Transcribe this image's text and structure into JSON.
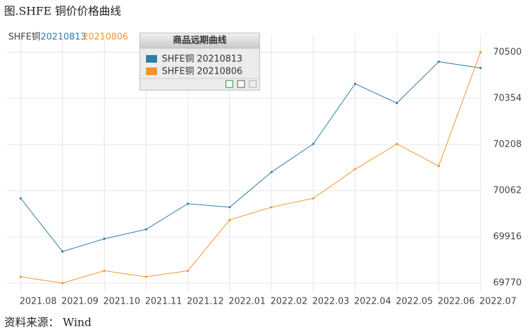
{
  "chart_data": {
    "type": "line",
    "title": "图.SHFE 铜价价格曲线",
    "source": "资料来源： Wind",
    "top_legend": [
      "SHFE铜",
      "20210813",
      "20210806"
    ],
    "legend_title": "商品远期曲线",
    "categories": [
      "2021.08",
      "2021.09",
      "2021.10",
      "2021.11",
      "2021.12",
      "2022.01",
      "2022.02",
      "2022.03",
      "2022.04",
      "2022.05",
      "2022.06",
      "2022.07"
    ],
    "series": [
      {
        "name": "SHFE铜 20210813",
        "color": "#2e7ca8",
        "values": [
          70038,
          69870,
          69910,
          69940,
          70021,
          70010,
          70121,
          70210,
          70400,
          70339,
          70470,
          70450
        ]
      },
      {
        "name": "SHFE铜 20210806",
        "color": "#f5922f",
        "values": [
          69790,
          69770,
          69809,
          69790,
          69809,
          69970,
          70010,
          70038,
          70130,
          70210,
          70140,
          70500
        ]
      }
    ],
    "ylim": [
      69740,
      70530
    ],
    "yticks": [
      69770,
      69916,
      70062,
      70208,
      70354,
      70500
    ],
    "grid": true
  }
}
